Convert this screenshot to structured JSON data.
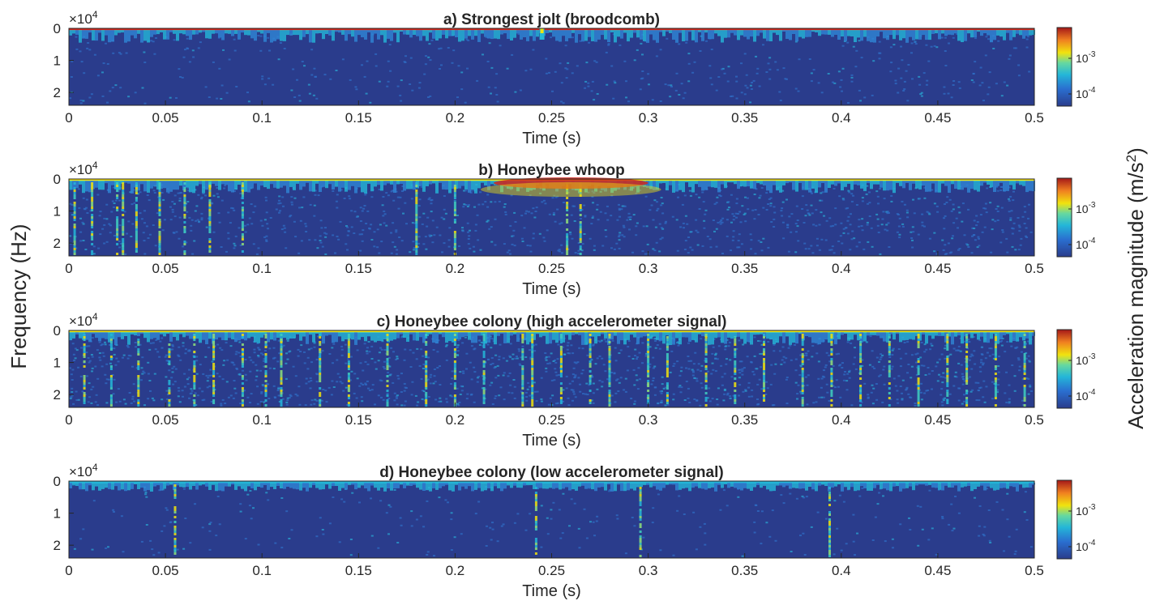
{
  "figure": {
    "ylabel": "Frequency (Hz)",
    "colorbar_label": "Acceleration magnitude (m/s",
    "colorbar_label_sup": "2",
    "colorbar_label_close": ")",
    "colormap": "jet",
    "colors": {
      "low": "#2a3c8c",
      "mid": "#24b6d8",
      "yellow": "#f1e30e",
      "high": "#d1261b"
    }
  },
  "chart_data": [
    {
      "type": "heatmap",
      "id": "a",
      "title": "a) Strongest jolt (broodcomb)",
      "xlabel": "Time (s)",
      "xlim": [
        0,
        0.5
      ],
      "ylim": [
        0,
        24000
      ],
      "y_reversed": true,
      "y_multiplier": "×10",
      "y_multiplier_exp": "4",
      "x_ticks": [
        "0",
        "0.05",
        "0.1",
        "0.15",
        "0.2",
        "0.25",
        "0.3",
        "0.35",
        "0.4",
        "0.45",
        "0.5"
      ],
      "y_ticks": [
        "0",
        "1",
        "2"
      ],
      "colorbar_ticks": [
        "10",
        "10"
      ],
      "colorbar_tick_exps": [
        "-3",
        "-4"
      ],
      "features": [
        {
          "time": 0.245,
          "kind": "single jolt",
          "extent": "low"
        }
      ],
      "density": 0.05,
      "top_band": "red"
    },
    {
      "type": "heatmap",
      "id": "b",
      "title": "b) Honeybee whoop",
      "xlabel": "Time (s)",
      "xlim": [
        0,
        0.5
      ],
      "ylim": [
        0,
        24000
      ],
      "y_reversed": true,
      "y_multiplier": "×10",
      "y_multiplier_exp": "4",
      "x_ticks": [
        "0",
        "0.05",
        "0.1",
        "0.15",
        "0.2",
        "0.25",
        "0.3",
        "0.35",
        "0.4",
        "0.45",
        "0.5"
      ],
      "y_ticks": [
        "0",
        "1",
        "2"
      ],
      "colorbar_ticks": [
        "10",
        "10"
      ],
      "colorbar_tick_exps": [
        "-3",
        "-4"
      ],
      "features": [
        {
          "time_range": [
            0.22,
            0.3
          ],
          "kind": "whoop",
          "frequency": "low"
        }
      ],
      "streaks": [
        0.003,
        0.012,
        0.025,
        0.028,
        0.035,
        0.047,
        0.06,
        0.073,
        0.09,
        0.18,
        0.2,
        0.258,
        0.265
      ],
      "density": 0.12,
      "top_band": "yellow"
    },
    {
      "type": "heatmap",
      "id": "c",
      "title": "c) Honeybee colony (high accelerometer signal)",
      "xlabel": "Time (s)",
      "xlim": [
        0,
        0.5
      ],
      "ylim": [
        0,
        24000
      ],
      "y_reversed": true,
      "y_multiplier": "×10",
      "y_multiplier_exp": "4",
      "x_ticks": [
        "0",
        "0.05",
        "0.1",
        "0.15",
        "0.2",
        "0.25",
        "0.3",
        "0.35",
        "0.4",
        "0.45",
        "0.5"
      ],
      "y_ticks": [
        "0",
        "1",
        "2"
      ],
      "colorbar_ticks": [
        "10",
        "10"
      ],
      "colorbar_tick_exps": [
        "-3",
        "-4"
      ],
      "streaks": [
        0.008,
        0.022,
        0.036,
        0.052,
        0.065,
        0.075,
        0.09,
        0.102,
        0.11,
        0.13,
        0.145,
        0.165,
        0.185,
        0.2,
        0.215,
        0.235,
        0.24,
        0.255,
        0.27,
        0.28,
        0.3,
        0.31,
        0.33,
        0.345,
        0.36,
        0.38,
        0.395,
        0.41,
        0.425,
        0.44,
        0.455,
        0.465,
        0.48,
        0.495
      ],
      "density": 0.16,
      "top_band": "yellow"
    },
    {
      "type": "heatmap",
      "id": "d",
      "title": "d) Honeybee colony (low accelerometer signal)",
      "xlabel": "Time (s)",
      "xlim": [
        0,
        0.5
      ],
      "ylim": [
        0,
        24000
      ],
      "y_reversed": true,
      "y_multiplier": "×10",
      "y_multiplier_exp": "4",
      "x_ticks": [
        "0",
        "0.05",
        "0.1",
        "0.15",
        "0.2",
        "0.25",
        "0.3",
        "0.35",
        "0.4",
        "0.45",
        "0.5"
      ],
      "y_ticks": [
        "0",
        "1",
        "2"
      ],
      "colorbar_ticks": [
        "10",
        "10"
      ],
      "colorbar_tick_exps": [
        "-3",
        "-4"
      ],
      "streaks": [
        0.055,
        0.242,
        0.296,
        0.394
      ],
      "density": 0.03,
      "top_band": "cyan"
    }
  ]
}
